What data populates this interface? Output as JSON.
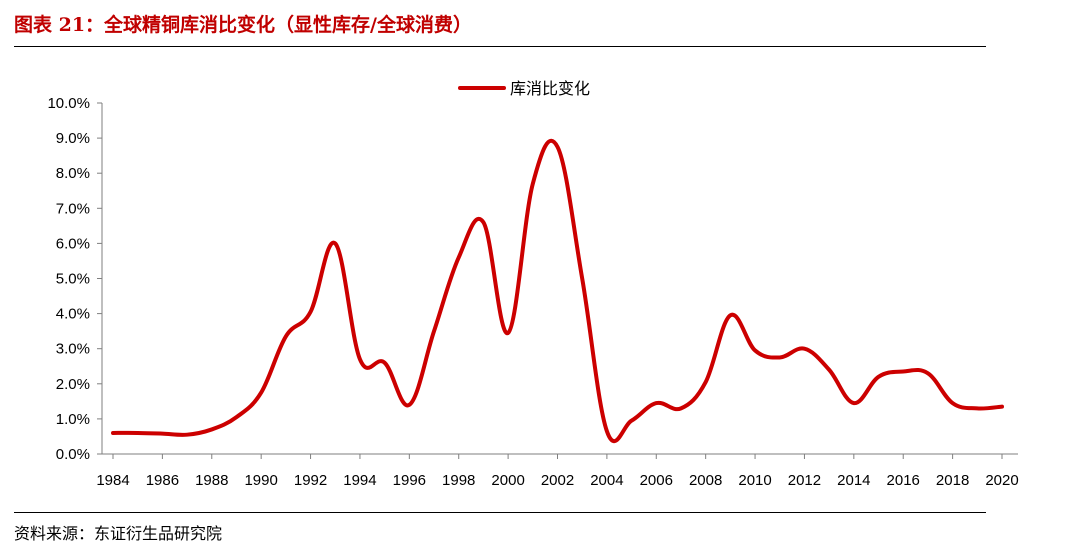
{
  "header": {
    "title": "图表 21：全球精铜库消比变化（显性库存/全球消费）"
  },
  "footer": {
    "source": "资料来源：东证衍生品研究院"
  },
  "colors": {
    "title": "#c00000",
    "series": "#cc0000",
    "axis": "#7f7f7f"
  },
  "chart_data": {
    "type": "line",
    "title": "",
    "xlabel": "",
    "ylabel": "",
    "grid": false,
    "legend_position": "top-center",
    "ylim": [
      0,
      10
    ],
    "xlim": [
      1984,
      2020
    ],
    "y_ticks": [
      "0.0%",
      "1.0%",
      "2.0%",
      "3.0%",
      "4.0%",
      "5.0%",
      "6.0%",
      "7.0%",
      "8.0%",
      "9.0%",
      "10.0%"
    ],
    "x_ticks": [
      "1984",
      "1986",
      "1988",
      "1990",
      "1992",
      "1994",
      "1996",
      "1998",
      "2000",
      "2002",
      "2004",
      "2006",
      "2008",
      "2010",
      "2012",
      "2014",
      "2016",
      "2018",
      "2020"
    ],
    "series": [
      {
        "name": "库消比变化",
        "unit": "%",
        "x": [
          1984,
          1985,
          1986,
          1987,
          1988,
          1989,
          1990,
          1991,
          1992,
          1993,
          1994,
          1995,
          1996,
          1997,
          1998,
          1999,
          2000,
          2001,
          2002,
          2003,
          2004,
          2005,
          2006,
          2007,
          2008,
          2009,
          2010,
          2011,
          2012,
          2013,
          2014,
          2015,
          2016,
          2017,
          2018,
          2019,
          2020
        ],
        "values": [
          0.6,
          0.6,
          0.58,
          0.55,
          0.7,
          1.05,
          1.75,
          3.35,
          4.05,
          6.0,
          2.7,
          2.6,
          1.4,
          3.5,
          5.6,
          6.6,
          3.45,
          7.7,
          8.75,
          5.0,
          0.65,
          0.95,
          1.45,
          1.3,
          2.05,
          3.95,
          2.95,
          2.75,
          3.0,
          2.4,
          1.45,
          2.2,
          2.35,
          2.3,
          1.45,
          1.3,
          1.35
        ]
      }
    ]
  }
}
